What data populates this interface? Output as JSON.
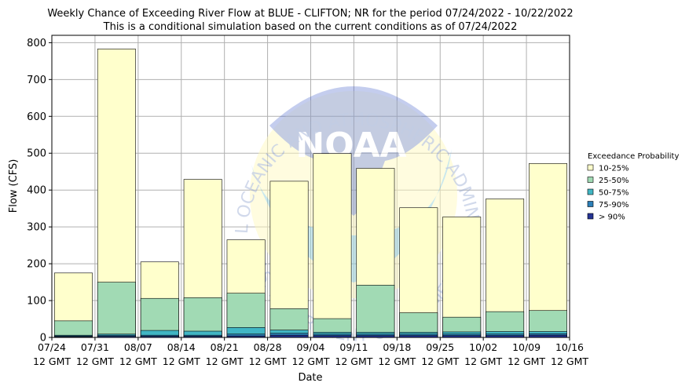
{
  "chart_data": {
    "type": "bar",
    "title": "Weekly Chance of Exceeding River Flow at BLUE - CLIFTON; NR for the period 07/24/2022 - 10/22/2022",
    "subtitle": "This is a conditional simulation based on the current conditions as of 07/24/2022",
    "xlabel": "Date",
    "ylabel": "Flow (CFS)",
    "ylim": [
      0,
      820
    ],
    "yticks": [
      0,
      100,
      200,
      300,
      400,
      500,
      600,
      700,
      800
    ],
    "xtick_labels": [
      [
        "07/24",
        "12 GMT"
      ],
      [
        "07/31",
        "12 GMT"
      ],
      [
        "08/07",
        "12 GMT"
      ],
      [
        "08/14",
        "12 GMT"
      ],
      [
        "08/21",
        "12 GMT"
      ],
      [
        "08/28",
        "12 GMT"
      ],
      [
        "09/04",
        "12 GMT"
      ],
      [
        "09/11",
        "12 GMT"
      ],
      [
        "09/18",
        "12 GMT"
      ],
      [
        "09/25",
        "12 GMT"
      ],
      [
        "10/02",
        "12 GMT"
      ],
      [
        "10/09",
        "12 GMT"
      ],
      [
        "10/16",
        "12 GMT"
      ]
    ],
    "grid": true,
    "legend_title": "Exceedance Probability",
    "legend_position": "right",
    "watermark": {
      "logo_text": "NOAA",
      "ring_text": "NATIONAL OCEANIC AND ATMOSPHERIC ADMINISTRATION",
      "bottom_text": "U.S. DEPARTMENT OF COMMERCE"
    },
    "series": [
      {
        "name": "10-25%",
        "color": "#ffffcc",
        "values": [
          175,
          783,
          205,
          429,
          265,
          424,
          499,
          459,
          352,
          327,
          376,
          472
        ]
      },
      {
        "name": "25-50%",
        "color": "#a1dab4",
        "values": [
          45,
          150,
          106,
          108,
          120,
          78,
          51,
          142,
          67,
          55,
          70,
          73
        ]
      },
      {
        "name": "50-75%",
        "color": "#41b6c4",
        "values": [
          6,
          9,
          19,
          17,
          27,
          20,
          14,
          14,
          14,
          15,
          16,
          16
        ]
      },
      {
        "name": "75-90%",
        "color": "#2c7fb8",
        "values": [
          4,
          6,
          6,
          6,
          9,
          11,
          9,
          9,
          9,
          9,
          9,
          10
        ]
      },
      {
        "name": "> 90%",
        "color": "#253494",
        "values": [
          2,
          3,
          3,
          3,
          4,
          6,
          5,
          5,
          5,
          5,
          5,
          6
        ]
      }
    ]
  }
}
